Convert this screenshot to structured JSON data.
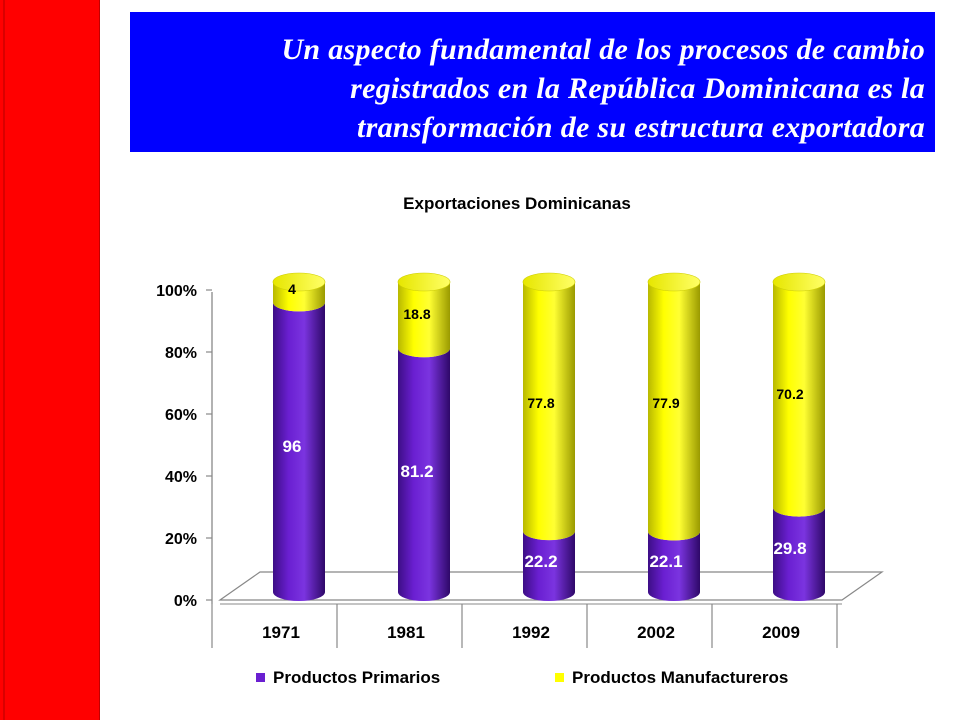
{
  "slide": {
    "title_lines": [
      "Un aspecto fundamental de los procesos de cambio",
      "registrados en la República Dominicana es la",
      "transformación de su estructura exportadora"
    ]
  },
  "chart_data": {
    "type": "bar",
    "stacked": true,
    "percent": true,
    "title": "Exportaciones Dominicanas",
    "categories": [
      "1971",
      "1981",
      "1992",
      "2002",
      "2009"
    ],
    "series": [
      {
        "name": "Productos Primarios",
        "color": "#6a1fd1",
        "values": [
          96,
          81.2,
          22.2,
          22.1,
          29.8
        ],
        "labels": [
          "96",
          "81.2",
          "22.2",
          "22.1",
          "29.8"
        ]
      },
      {
        "name": "Productos Manufactureros",
        "color": "#ffff00",
        "values": [
          4,
          18.8,
          77.8,
          77.9,
          70.2
        ],
        "labels": [
          "4",
          "18.8",
          "77.8",
          "77.9",
          "70.2"
        ]
      }
    ],
    "yticks": [
      "0%",
      "20%",
      "40%",
      "60%",
      "80%",
      "100%"
    ],
    "ylim": [
      0,
      100
    ],
    "legend_position": "bottom",
    "grid": false
  }
}
